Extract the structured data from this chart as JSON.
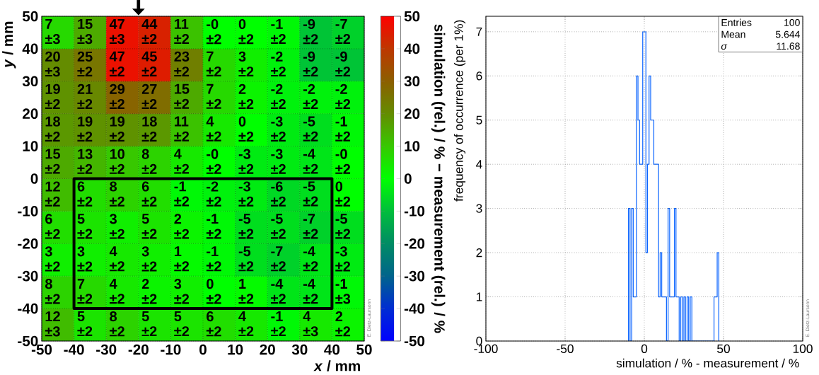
{
  "chart_data": [
    {
      "type": "heatmap",
      "xlabel": "*x* / mm",
      "ylabel": "*y* / mm",
      "clabel": "simulation (rel.) / % − measurement (rel.) / %",
      "xlim": [
        -50,
        50
      ],
      "ylim": [
        -50,
        50
      ],
      "xticks": [
        -50,
        -40,
        -30,
        -20,
        -10,
        0,
        10,
        20,
        30,
        40,
        50
      ],
      "yticks": [
        -50,
        -40,
        -30,
        -20,
        -10,
        0,
        10,
        20,
        30,
        40,
        50
      ],
      "clim": [
        -50,
        50
      ],
      "cticks": [
        -50,
        -40,
        -30,
        -20,
        -10,
        0,
        10,
        20,
        30,
        40,
        50
      ],
      "grid": true,
      "cells": [
        [
          7,
          15,
          47,
          44,
          11,
          0,
          0,
          -1,
          -9,
          -7
        ],
        [
          20,
          25,
          47,
          45,
          23,
          7,
          3,
          -2,
          -9,
          -9
        ],
        [
          19,
          21,
          29,
          27,
          15,
          7,
          2,
          -2,
          -2,
          -2
        ],
        [
          18,
          19,
          19,
          18,
          11,
          4,
          0,
          -3,
          -5,
          -1
        ],
        [
          15,
          13,
          10,
          8,
          4,
          0,
          -3,
          -3,
          -4,
          0
        ],
        [
          12,
          6,
          8,
          6,
          -1,
          -2,
          -3,
          -6,
          -5,
          0
        ],
        [
          6,
          5,
          3,
          5,
          2,
          -1,
          -5,
          -5,
          -7,
          -5
        ],
        [
          3,
          3,
          4,
          3,
          1,
          -1,
          -5,
          -7,
          -4,
          -3
        ],
        [
          8,
          7,
          4,
          2,
          3,
          0,
          1,
          -4,
          -4,
          -1
        ],
        [
          12,
          5,
          8,
          5,
          5,
          6,
          4,
          -1,
          4,
          2
        ]
      ],
      "cell_labels": [
        [
          "7 ±3",
          "15 ±3",
          "47 ±3",
          "44 ±2",
          "11 ±2",
          "-0 ±2",
          "0 ±2",
          "-1 ±2",
          "-9 ±2",
          "-7 ±2"
        ],
        [
          "20 ±3",
          "25 ±2",
          "47 ±2",
          "45 ±2",
          "23 ±2",
          "7 ±2",
          "3 ±2",
          "-2 ±2",
          "-9 ±2",
          "-9 ±2"
        ],
        [
          "19 ±2",
          "21 ±2",
          "29 ±2",
          "27 ±2",
          "15 ±2",
          "7 ±2",
          "2 ±2",
          "-2 ±2",
          "-2 ±2",
          "-2 ±2"
        ],
        [
          "18 ±2",
          "19 ±2",
          "19 ±2",
          "18 ±2",
          "11 ±2",
          "4 ±2",
          "0 ±2",
          "-3 ±2",
          "-5 ±2",
          "-1 ±2"
        ],
        [
          "15 ±2",
          "13 ±2",
          "10 ±2",
          "8 ±2",
          "4 ±2",
          "-0 ±2",
          "-3 ±2",
          "-3 ±2",
          "-4 ±2",
          "-0 ±2"
        ],
        [
          "12 ±2",
          "6 ±2",
          "8 ±2",
          "6 ±2",
          "-1 ±2",
          "-2 ±2",
          "-3 ±2",
          "-6 ±2",
          "-5 ±2",
          "0 ±2"
        ],
        [
          "6 ±2",
          "5 ±2",
          "3 ±2",
          "5 ±2",
          "2 ±2",
          "-1 ±2",
          "-5 ±2",
          "-5 ±2",
          "-7 ±2",
          "-5 ±2"
        ],
        [
          "3 ±2",
          "3 ±2",
          "4 ±2",
          "3 ±2",
          "1 ±2",
          "-1 ±2",
          "-5 ±2",
          "-7 ±2",
          "-4 ±2",
          "-3 ±2"
        ],
        [
          "8 ±2",
          "7 ±2",
          "4 ±2",
          "2 ±2",
          "3 ±2",
          "0 ±2",
          "1 ±2",
          "-4 ±2",
          "-4 ±2",
          "-1 ±3"
        ],
        [
          "12 ±3",
          "5 ±2",
          "8 ±2",
          "5 ±2",
          "5 ±2",
          "6 ±2",
          "4 ±2",
          "-1 ±2",
          "4 ±3",
          "2 ±2"
        ]
      ],
      "annotations": [
        "E. Dietz-Laursonn"
      ]
    },
    {
      "type": "histogram",
      "xlabel": "simulation / % - measurement / %",
      "ylabel": "frequency of occurrence (per 1%)",
      "color": "#0a64ff",
      "bins": [
        -10,
        -9,
        -8,
        -7,
        -6,
        -5,
        -4,
        -3,
        -2,
        -1,
        0,
        1,
        2,
        3,
        4,
        5,
        6,
        7,
        8,
        9,
        10,
        11,
        12,
        13,
        14,
        15,
        16,
        17,
        18,
        19,
        20,
        21,
        22,
        23,
        24,
        25,
        26,
        27,
        28,
        29,
        30,
        31,
        32,
        33,
        34,
        35,
        36,
        37,
        38,
        39,
        40,
        41,
        42,
        43,
        44,
        45,
        46,
        47
      ],
      "values": [
        3,
        0,
        3,
        1,
        1,
        6,
        5,
        4,
        4,
        7,
        7,
        2,
        4,
        6,
        5,
        5,
        4,
        4,
        4,
        1,
        2,
        1,
        1,
        1,
        0,
        3,
        1,
        1,
        1,
        3,
        1,
        1,
        0,
        1,
        0,
        1,
        0,
        1,
        0,
        1,
        0,
        0,
        0,
        0,
        0,
        0,
        0,
        0,
        0,
        0,
        0,
        0,
        0,
        0,
        1,
        1,
        2
      ],
      "xlim": [
        -100,
        100
      ],
      "ylim": [
        0,
        7.35
      ],
      "xticks": [
        -100,
        -50,
        0,
        50,
        100
      ],
      "yticks": [
        0,
        1,
        2,
        3,
        4,
        5,
        6,
        7
      ],
      "grid": true,
      "annotations": [
        "Entries",
        "100",
        "Mean",
        "5.644",
        "*σ*",
        "11.68",
        "E. Dietz-Laursonn"
      ]
    }
  ]
}
